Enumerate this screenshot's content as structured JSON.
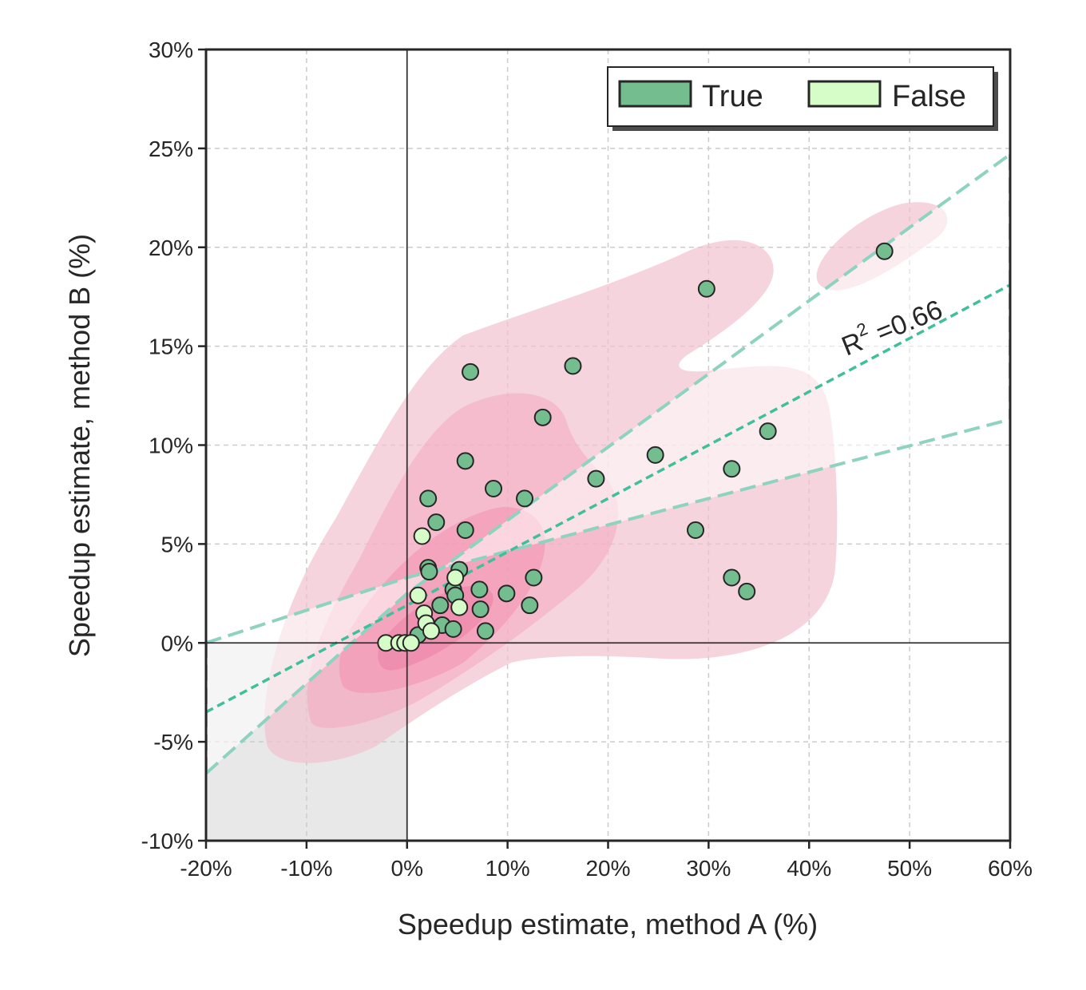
{
  "chart_data": {
    "type": "scatter",
    "title": "",
    "xlabel": "Speedup estimate, method A (%)",
    "ylabel": "Speedup estimate, method B (%)",
    "xlim": [
      -20,
      60
    ],
    "ylim": [
      -10,
      30
    ],
    "x_ticks": [
      -20,
      -10,
      0,
      10,
      20,
      30,
      40,
      50,
      60
    ],
    "y_ticks": [
      -10,
      -5,
      0,
      5,
      10,
      15,
      20,
      25,
      30
    ],
    "x_tick_labels": [
      "-20%",
      "-10%",
      "0%",
      "10%",
      "20%",
      "30%",
      "40%",
      "50%",
      "60%"
    ],
    "y_tick_labels": [
      "-10%",
      "-5%",
      "0%",
      "5%",
      "10%",
      "15%",
      "20%",
      "25%",
      "30%"
    ],
    "grid": true,
    "legend_position": "top-right",
    "legend": [
      {
        "label": "True",
        "color": "#74bd8e"
      },
      {
        "label": "False",
        "color": "#d6fdc7"
      }
    ],
    "annotation": "R² =0.66",
    "annotation_parts": {
      "base": "R",
      "sup": "2",
      "rest": " =0.66"
    },
    "regression_line": {
      "slope": 0.27,
      "intercept": 1.9
    },
    "confidence_band": {
      "upper": [
        [
          -20,
          -6.6
        ],
        [
          0,
          2.5
        ],
        [
          60,
          24.7
        ]
      ],
      "lower": [
        [
          -20,
          0
        ],
        [
          0,
          3.3
        ],
        [
          60,
          11.3
        ]
      ]
    },
    "shaded_quadrant": {
      "x": [
        -20,
        0
      ],
      "y": [
        -10,
        0
      ]
    },
    "series": [
      {
        "name": "True",
        "color": "#74bd8e",
        "points": [
          [
            47.5,
            19.8
          ],
          [
            29.8,
            17.9
          ],
          [
            6.3,
            13.7
          ],
          [
            16.5,
            14.0
          ],
          [
            13.5,
            11.4
          ],
          [
            35.9,
            10.7
          ],
          [
            5.8,
            9.2
          ],
          [
            24.7,
            9.5
          ],
          [
            32.3,
            8.8
          ],
          [
            18.8,
            8.3
          ],
          [
            8.6,
            7.8
          ],
          [
            11.7,
            7.3
          ],
          [
            2.1,
            7.3
          ],
          [
            2.9,
            6.1
          ],
          [
            5.8,
            5.7
          ],
          [
            28.7,
            5.7
          ],
          [
            2.1,
            3.8
          ],
          [
            2.2,
            3.6
          ],
          [
            5.2,
            3.7
          ],
          [
            32.3,
            3.3
          ],
          [
            12.6,
            3.3
          ],
          [
            33.8,
            2.6
          ],
          [
            4.6,
            2.7
          ],
          [
            7.2,
            2.7
          ],
          [
            9.9,
            2.5
          ],
          [
            4.8,
            2.4
          ],
          [
            3.3,
            1.9
          ],
          [
            7.3,
            1.7
          ],
          [
            12.2,
            1.9
          ],
          [
            3.5,
            0.9
          ],
          [
            4.6,
            0.7
          ],
          [
            7.8,
            0.6
          ],
          [
            1.1,
            0.4
          ]
        ]
      },
      {
        "name": "False",
        "color": "#d6fdc7",
        "points": [
          [
            1.5,
            5.4
          ],
          [
            4.8,
            3.3
          ],
          [
            1.1,
            2.4
          ],
          [
            5.2,
            1.8
          ],
          [
            1.7,
            1.5
          ],
          [
            1.9,
            1.0
          ],
          [
            2.4,
            0.6
          ],
          [
            -2.1,
            0.0
          ],
          [
            -0.8,
            0.0
          ],
          [
            -0.2,
            0.0
          ],
          [
            0.4,
            0.0
          ]
        ]
      }
    ]
  }
}
